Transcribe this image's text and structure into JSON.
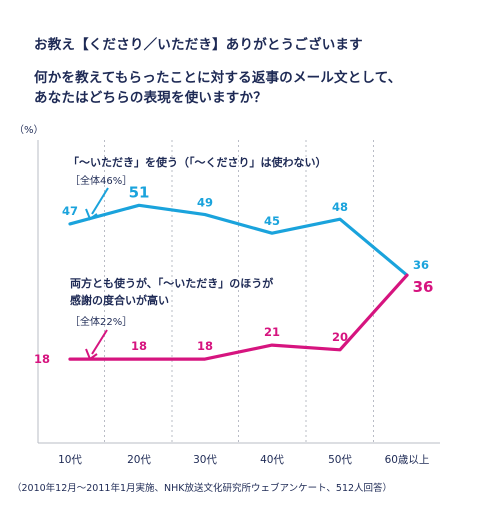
{
  "header": {
    "title": "お教え【くださり／いただき】ありがとうございます",
    "question_line1": "何かを教えてもらったことに対する返事のメール文として、",
    "question_line2": "あなたはどちらの表現を使いますか？"
  },
  "footnote": "（2010年12月～2011年1月実施、NHK放送文化研究所ウェブアンケート、512人回答）",
  "colors": {
    "cyan": "#1aa3dc",
    "magenta": "#d6147f",
    "text": "#1e2a55",
    "grid": "#b9bcc6"
  },
  "chart_data": {
    "type": "line",
    "ylabel": "（%）",
    "categories": [
      "10代",
      "20代",
      "30代",
      "40代",
      "50代",
      "60歳以上"
    ],
    "ylim": [
      0,
      65
    ],
    "grid": "vertical-dashed",
    "series": [
      {
        "name": "「～いただき」を使う（「～くださり」は使わない）",
        "total": "［全体46%］",
        "color": "#1aa3dc",
        "values": [
          47,
          51,
          49,
          45,
          48,
          36
        ]
      },
      {
        "name_line1": "両方とも使うが、「～いただき」のほうが",
        "name_line2": "感謝の度合いが高い",
        "total": "［全体22%］",
        "color": "#d6147f",
        "values": [
          18,
          18,
          18,
          21,
          20,
          36
        ]
      }
    ]
  }
}
